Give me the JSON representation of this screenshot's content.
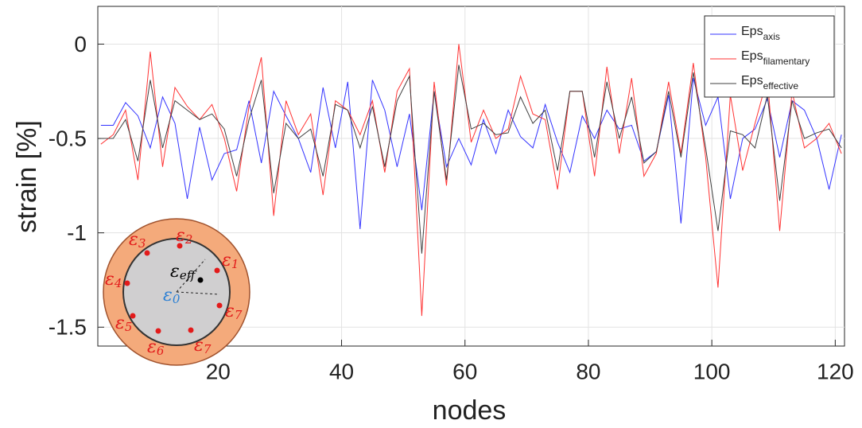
{
  "chart_data": {
    "type": "line",
    "xlabel": "nodes",
    "ylabel": "strain [%]",
    "x": [
      1,
      3,
      5,
      7,
      9,
      11,
      13,
      15,
      17,
      19,
      21,
      23,
      25,
      27,
      29,
      31,
      33,
      35,
      37,
      39,
      41,
      43,
      45,
      47,
      49,
      51,
      53,
      55,
      57,
      59,
      61,
      63,
      65,
      67,
      69,
      71,
      73,
      75,
      77,
      79,
      81,
      83,
      85,
      87,
      89,
      91,
      93,
      95,
      97,
      99,
      101,
      103,
      105,
      107,
      109,
      111,
      113,
      115,
      117,
      119,
      121
    ],
    "series": [
      {
        "name": "Eps",
        "subscript": "axis",
        "color": "#3333ff",
        "values": [
          -0.43,
          -0.43,
          -0.31,
          -0.38,
          -0.55,
          -0.28,
          -0.42,
          -0.82,
          -0.44,
          -0.72,
          -0.58,
          -0.56,
          -0.3,
          -0.63,
          -0.25,
          -0.38,
          -0.5,
          -0.68,
          -0.23,
          -0.55,
          -0.2,
          -0.98,
          -0.19,
          -0.35,
          -0.65,
          -0.37,
          -0.88,
          -0.25,
          -0.65,
          -0.5,
          -0.64,
          -0.4,
          -0.58,
          -0.35,
          -0.49,
          -0.55,
          -0.32,
          -0.52,
          -0.68,
          -0.38,
          -0.5,
          -0.35,
          -0.45,
          -0.43,
          -0.62,
          -0.57,
          -0.27,
          -0.95,
          -0.18,
          -0.43,
          -0.28,
          -0.82,
          -0.5,
          -0.45,
          -0.29,
          -0.6,
          -0.3,
          -0.35,
          -0.5,
          -0.77,
          -0.48
        ]
      },
      {
        "name": "Eps",
        "subscript": "filamentary",
        "color": "#ff3333",
        "values": [
          -0.53,
          -0.48,
          -0.35,
          -0.72,
          -0.04,
          -0.65,
          -0.23,
          -0.33,
          -0.4,
          -0.32,
          -0.5,
          -0.78,
          -0.33,
          -0.07,
          -0.91,
          -0.3,
          -0.48,
          -0.37,
          -0.8,
          -0.3,
          -0.35,
          -0.48,
          -0.3,
          -0.68,
          -0.25,
          -0.13,
          -1.44,
          -0.2,
          -0.75,
          0.0,
          -0.52,
          -0.35,
          -0.5,
          -0.45,
          -0.17,
          -0.37,
          -0.4,
          -0.77,
          -0.25,
          -0.25,
          -0.7,
          -0.12,
          -0.58,
          -0.18,
          -0.7,
          -0.58,
          -0.2,
          -0.58,
          -0.1,
          -0.6,
          -1.29,
          -0.27,
          -0.67,
          -0.42,
          -0.18,
          -0.99,
          -0.25,
          -0.55,
          -0.5,
          -0.42,
          -0.58
        ]
      },
      {
        "name": "Eps",
        "subscript": "effective",
        "color": "#404040",
        "values": [
          -0.5,
          -0.5,
          -0.4,
          -0.62,
          -0.19,
          -0.55,
          -0.3,
          -0.35,
          -0.4,
          -0.37,
          -0.45,
          -0.7,
          -0.4,
          -0.19,
          -0.79,
          -0.42,
          -0.5,
          -0.45,
          -0.7,
          -0.32,
          -0.35,
          -0.55,
          -0.33,
          -0.65,
          -0.3,
          -0.17,
          -1.11,
          -0.25,
          -0.72,
          -0.11,
          -0.45,
          -0.42,
          -0.48,
          -0.47,
          -0.28,
          -0.42,
          -0.35,
          -0.67,
          -0.25,
          -0.25,
          -0.6,
          -0.2,
          -0.5,
          -0.28,
          -0.63,
          -0.57,
          -0.25,
          -0.6,
          -0.15,
          -0.55,
          -0.99,
          -0.46,
          -0.48,
          -0.55,
          -0.27,
          -0.83,
          -0.3,
          -0.5,
          -0.47,
          -0.45,
          -0.55
        ]
      }
    ],
    "xlim": [
      0.5,
      121.5
    ],
    "ylim": [
      -1.6,
      0.2
    ],
    "xticks": [
      20,
      40,
      60,
      80,
      100,
      120
    ],
    "yticks": [
      0,
      -0.5,
      -1,
      -1.5
    ],
    "grid": true,
    "legend": "upper right",
    "inset": {
      "labels": [
        {
          "text": "ε",
          "sub": "2"
        },
        {
          "text": "ε",
          "sub": "3"
        },
        {
          "text": "ε",
          "sub": "1"
        },
        {
          "text": "ε",
          "sub": "4"
        },
        {
          "text": "ε",
          "sub": "7"
        },
        {
          "text": "ε",
          "sub": "5"
        },
        {
          "text": "ε",
          "sub": "6"
        },
        {
          "text": "ε",
          "sub": "7"
        },
        {
          "text": "ε",
          "sub": "eff"
        },
        {
          "text": "ε",
          "sub": "0"
        }
      ]
    }
  }
}
